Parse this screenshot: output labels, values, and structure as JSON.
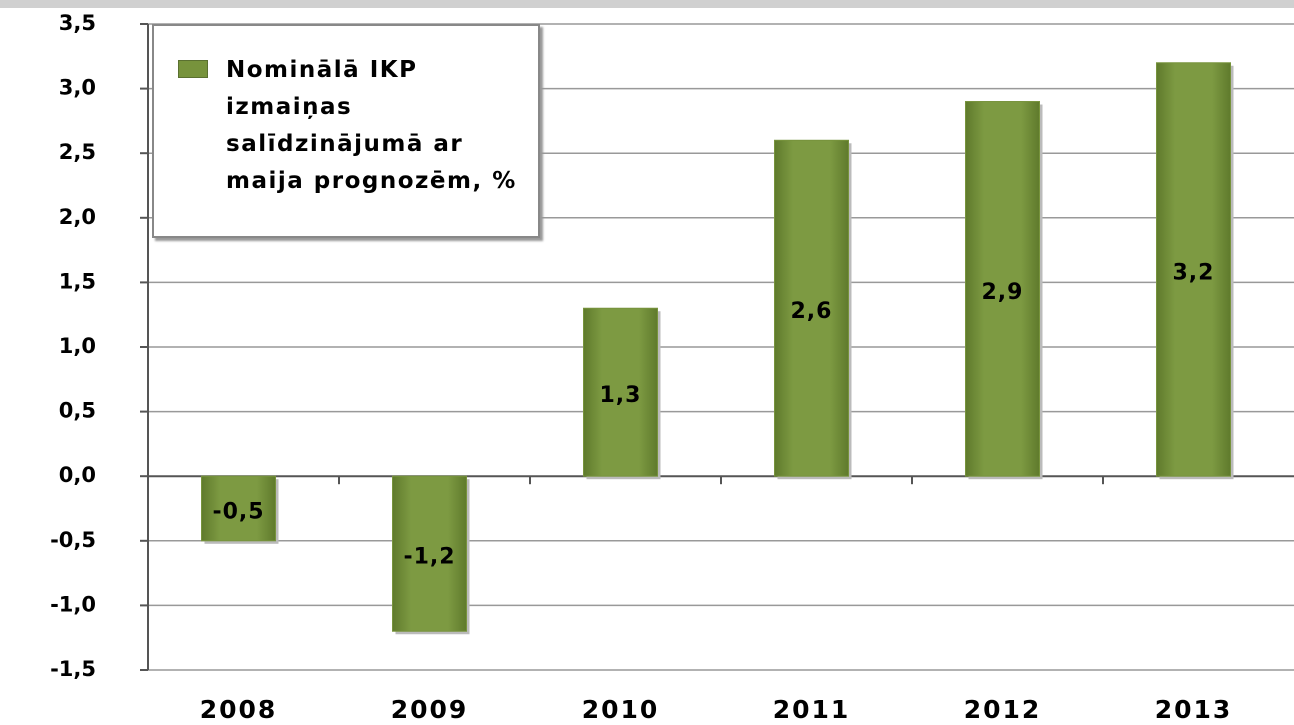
{
  "chart_data": {
    "type": "bar",
    "categories": [
      "2008",
      "2009",
      "2010",
      "2011",
      "2012",
      "2013"
    ],
    "series": [
      {
        "name": "Nominālā IKP izmaiņas salīdzinājumā ar maija prognozēm, %",
        "color": "#77933c",
        "values": [
          -0.5,
          -1.2,
          1.3,
          2.6,
          2.9,
          3.2
        ],
        "value_labels": [
          "-0,5",
          "-1,2",
          "1,3",
          "2,6",
          "2,9",
          "3,2"
        ]
      }
    ],
    "ylim": [
      -1.5,
      3.5
    ],
    "yticks": [
      {
        "value": -1.5,
        "label": "-1,5"
      },
      {
        "value": -1,
        "label": "-1,0"
      },
      {
        "value": -0.5,
        "label": "-0,5"
      },
      {
        "value": 0,
        "label": "0,0"
      },
      {
        "value": 0.5,
        "label": "0,5"
      },
      {
        "value": 1,
        "label": "1,0"
      },
      {
        "value": 1.5,
        "label": "1,5"
      },
      {
        "value": 2,
        "label": "2,0"
      },
      {
        "value": 2.5,
        "label": "2,5"
      },
      {
        "value": 3,
        "label": "3,0"
      },
      {
        "value": 3.5,
        "label": "3,5"
      }
    ],
    "grid": true,
    "legend": "upper left"
  }
}
